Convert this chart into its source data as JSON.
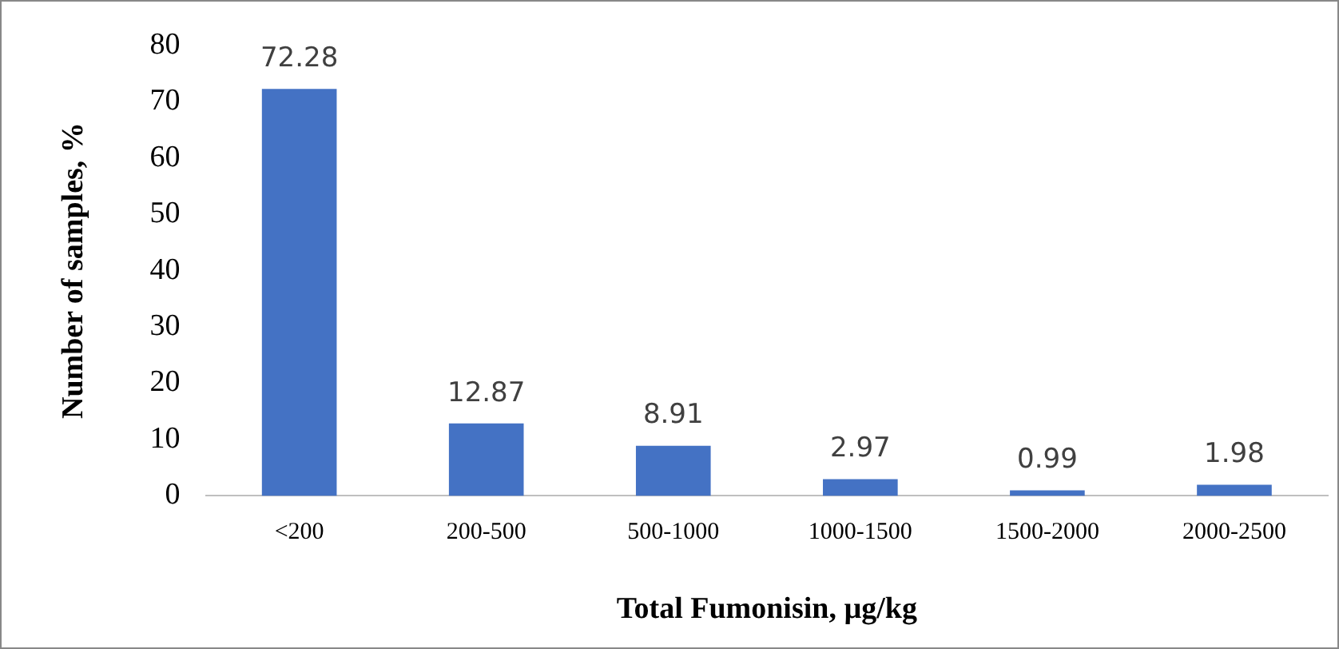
{
  "chart_data": {
    "type": "bar",
    "xlabel": "Total Fumonisin, µg/kg",
    "ylabel": "Number of samples, %",
    "categories": [
      "<200",
      "200-500",
      "500-1000",
      "1000-1500",
      "1500-2000",
      "2000-2500"
    ],
    "values": [
      72.28,
      12.87,
      8.91,
      2.97,
      0.99,
      1.98
    ],
    "color": "#4472c4",
    "ylim": [
      0,
      80
    ],
    "yticks": [
      0,
      10,
      20,
      30,
      40,
      50,
      60,
      70,
      80
    ],
    "grid": false,
    "legend": false,
    "data_labels": true
  }
}
